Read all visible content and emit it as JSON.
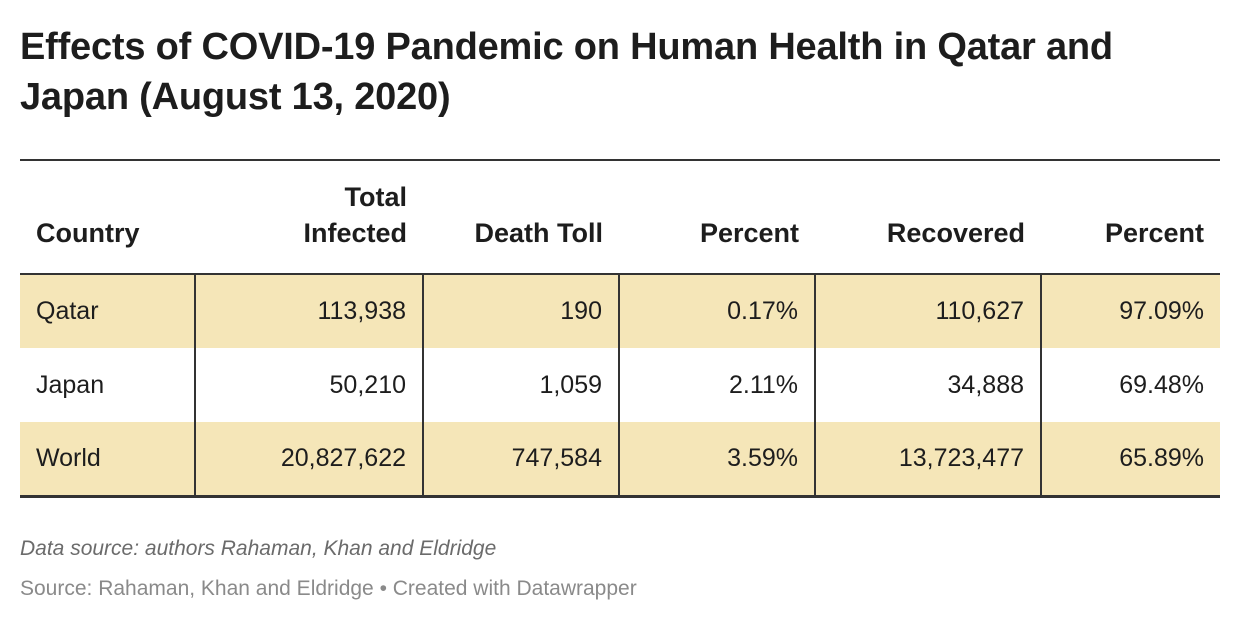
{
  "title": "Effects of COVID-19 Pandemic on Human Health in Qatar and Japan (August 13, 2020)",
  "chart_data": {
    "type": "table",
    "columns": [
      "Country",
      "Total Infected",
      "Death Toll",
      "Percent",
      "Recovered",
      "Percent"
    ],
    "rows": [
      [
        "Qatar",
        "113,938",
        "190",
        "0.17%",
        "110,627",
        "97.09%"
      ],
      [
        "Japan",
        "50,210",
        "1,059",
        "2.11%",
        "34,888",
        "69.48%"
      ],
      [
        "World",
        "20,827,622",
        "747,584",
        "3.59%",
        "13,723,477",
        "65.89%"
      ]
    ],
    "highlight_color": "#f5e6b8",
    "highlighted_rows": [
      "Qatar",
      "World"
    ]
  },
  "notes": "Data source: authors Rahaman, Khan and Eldridge",
  "source": "Source: Rahaman, Khan and Eldridge • Created with Datawrapper"
}
